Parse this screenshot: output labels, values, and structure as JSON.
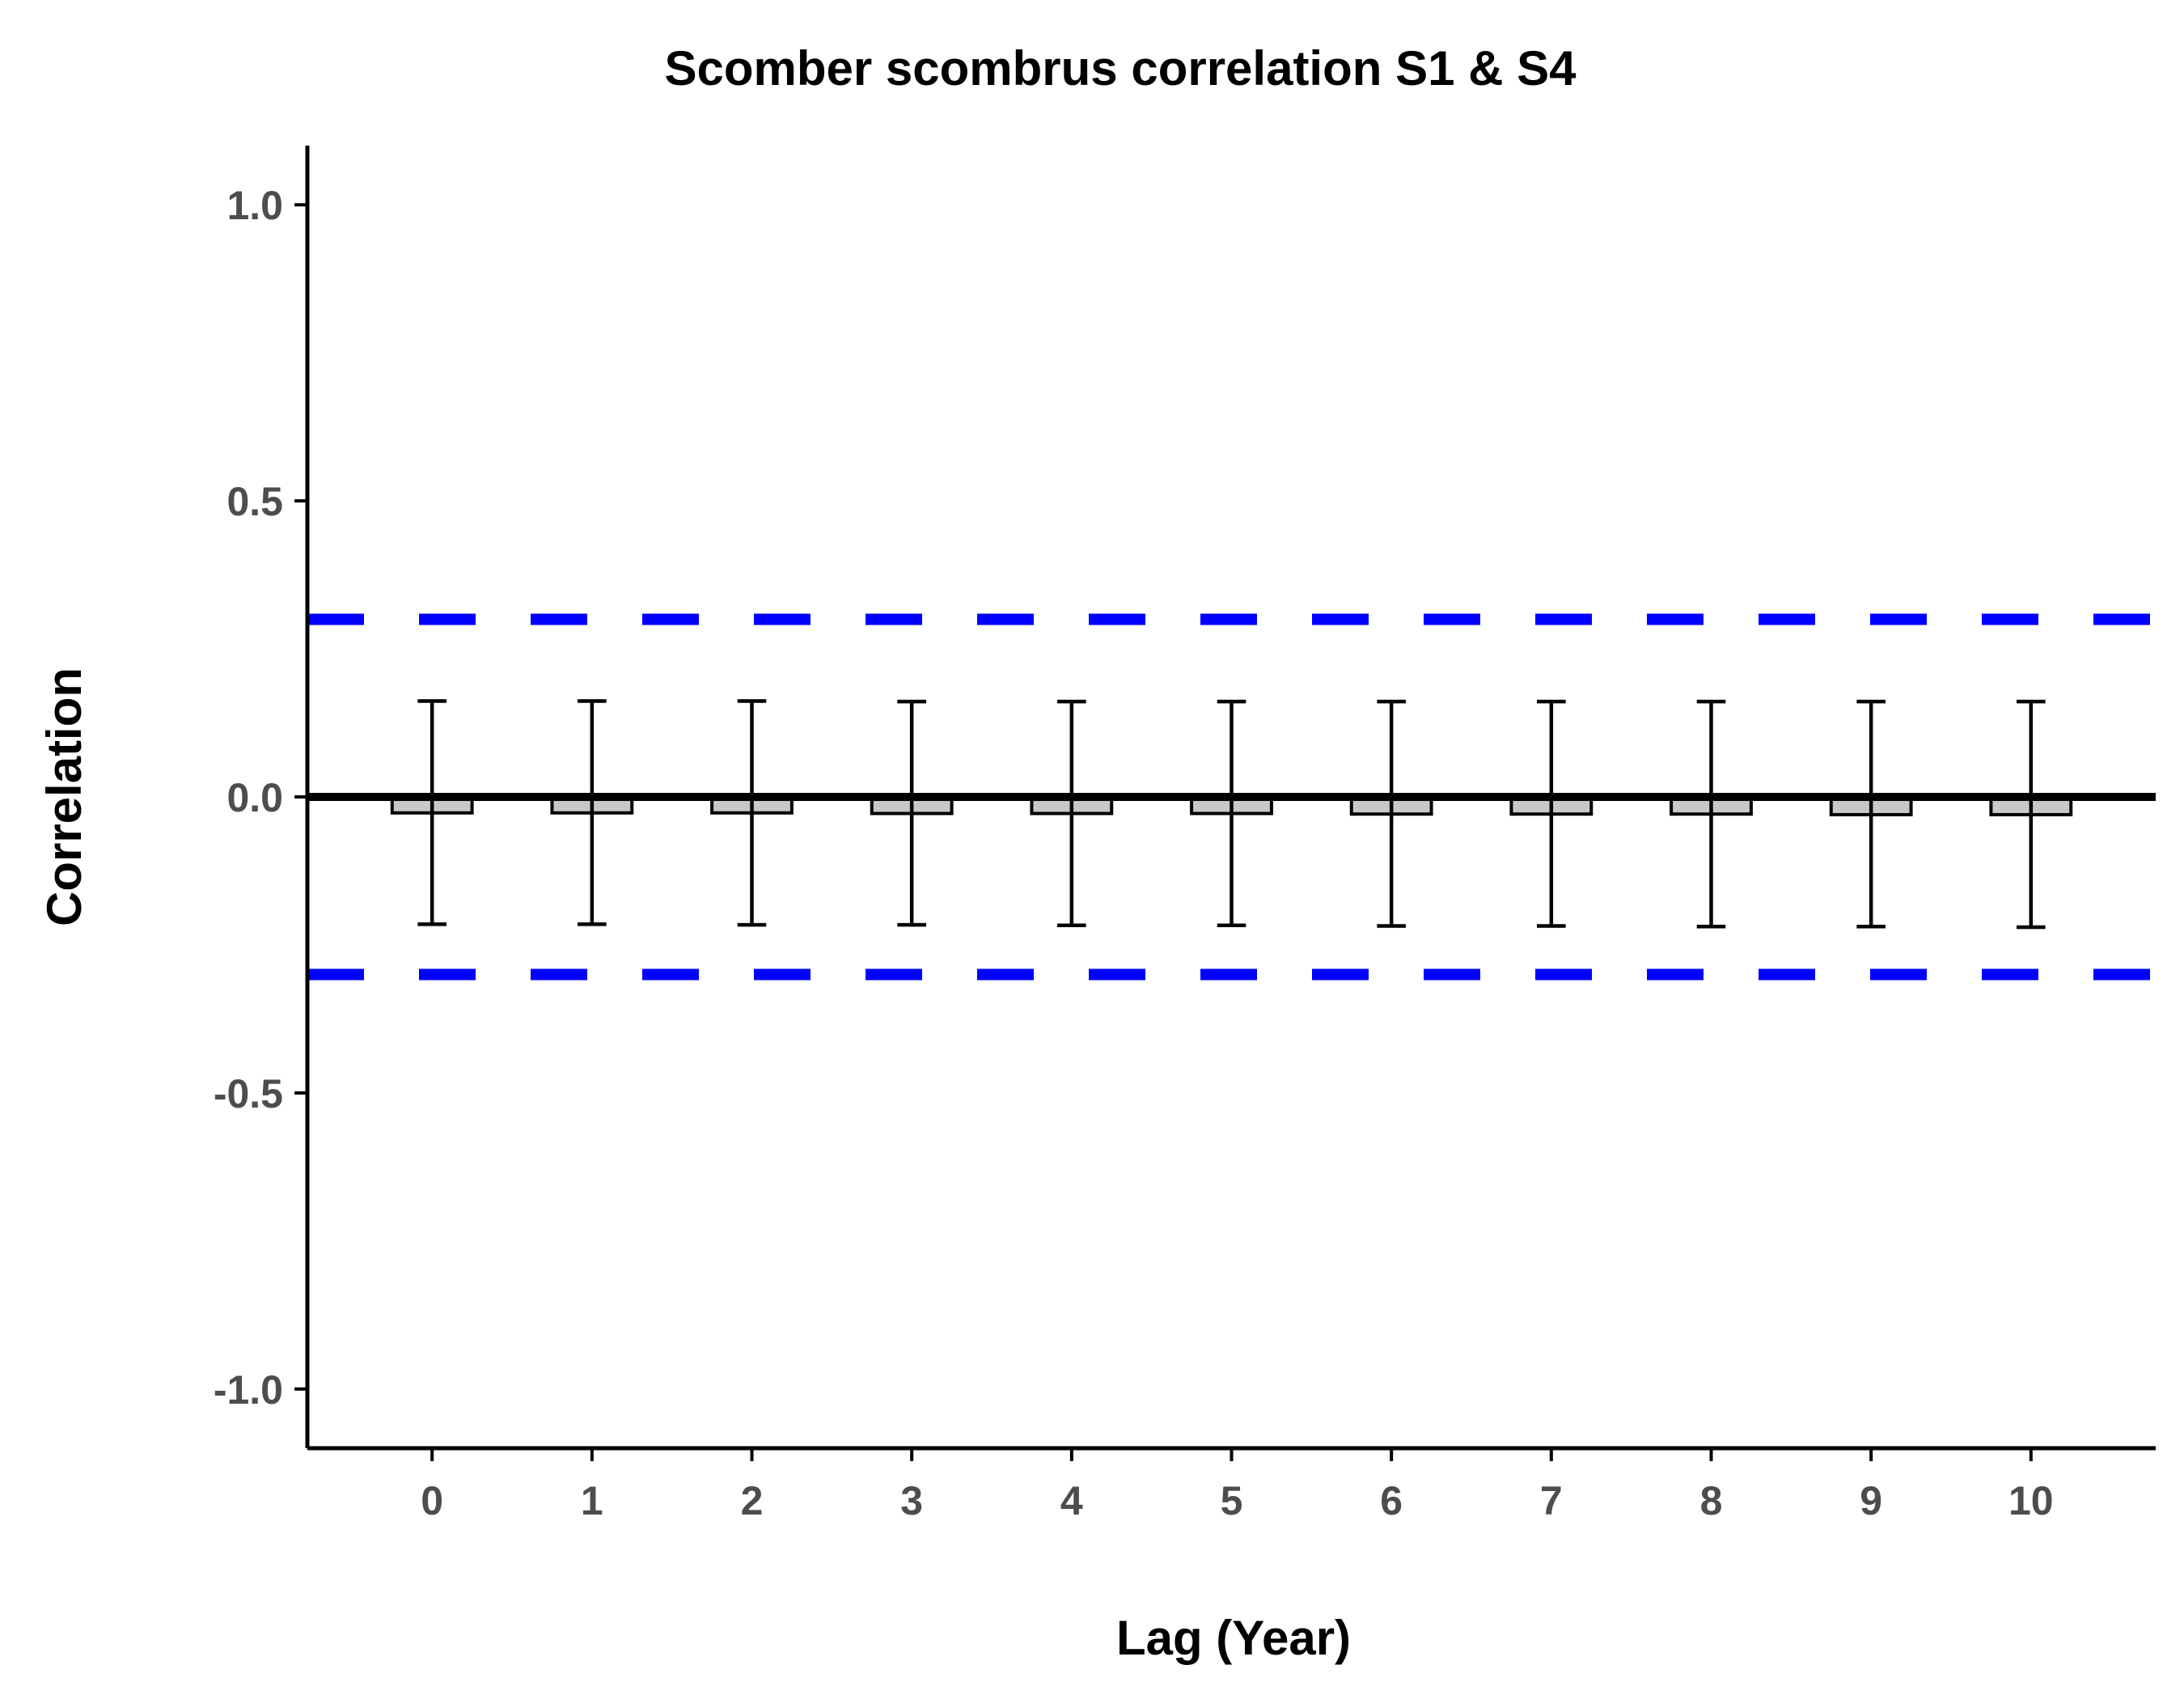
{
  "chart_data": {
    "type": "bar",
    "title": "Scomber scombrus correlation S1 & S4",
    "xlabel": "Lag (Year)",
    "ylabel": "Correlation",
    "categories": [
      "0",
      "1",
      "2",
      "3",
      "4",
      "5",
      "6",
      "7",
      "8",
      "9",
      "10"
    ],
    "x": [
      0,
      1,
      2,
      3,
      4,
      5,
      6,
      7,
      8,
      9,
      10
    ],
    "values": [
      -0.027,
      -0.027,
      -0.027,
      -0.028,
      -0.028,
      -0.028,
      -0.029,
      -0.029,
      -0.029,
      -0.03,
      -0.03
    ],
    "error_upper": [
      0.162,
      0.162,
      0.162,
      0.161,
      0.161,
      0.161,
      0.161,
      0.161,
      0.161,
      0.161,
      0.161
    ],
    "error_lower": [
      -0.215,
      -0.215,
      -0.216,
      -0.216,
      -0.217,
      -0.217,
      -0.218,
      -0.218,
      -0.219,
      -0.219,
      -0.22
    ],
    "reference_lines": {
      "zero": 0.0,
      "upper_threshold": 0.3,
      "lower_threshold": -0.3
    },
    "ylim": [
      -1.1,
      1.1
    ],
    "xlim": [
      -0.78,
      10.78
    ],
    "yticks": [
      -1.0,
      -0.5,
      0.0,
      0.5,
      1.0
    ],
    "ytick_labels": [
      "-1.0",
      "-0.5",
      "0.0",
      "0.5",
      "1.0"
    ],
    "grid": false,
    "legend": "none",
    "colors": {
      "bar_fill": "#c8c8c8",
      "bar_stroke": "#000000",
      "error_bar": "#000000",
      "threshold_line": "#0000ff",
      "zero_line": "#000000",
      "axis": "#000000",
      "tick_label": "#4d4d4d"
    }
  }
}
